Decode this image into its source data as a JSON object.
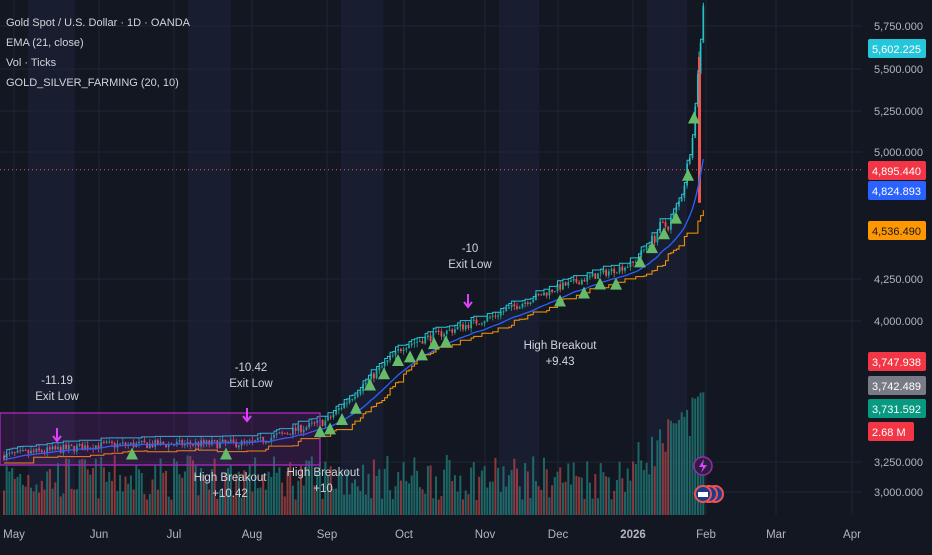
{
  "legend": {
    "title": "Gold Spot / U.S. Dollar · 1D · OANDA",
    "ema": "EMA (21, close)",
    "vol": "Vol · Ticks",
    "indicator": "GOLD_SILVER_FARMING (20, 10)"
  },
  "colors": {
    "background": "#131722",
    "shade": "#1a2034",
    "grid": "#1e2433",
    "axis_text": "#b2b5be",
    "up": "#26a69a",
    "down": "#ef5350",
    "ema": "#2962ff",
    "upper_band": "#26c6da",
    "lower_band": "#ff9800",
    "signal": "#66bb6a",
    "exit": "#e040fb",
    "range_box": "#9c27b0"
  },
  "chart_data": {
    "type": "candlestick",
    "y_ticks": [
      "5,750.000",
      "5,500.000",
      "5,250.000",
      "5,000.000",
      "4,250.000",
      "4,000.000",
      "3,250.000",
      "3,000.000"
    ],
    "x_ticks": [
      "May",
      "Jun",
      "Jul",
      "Aug",
      "Sep",
      "Oct",
      "Nov",
      "Dec",
      "2026",
      "Feb",
      "Mar",
      "Apr"
    ],
    "price_path": [
      [
        "May",
        3290
      ],
      [
        "Jun",
        3340
      ],
      [
        "Jul",
        3345
      ],
      [
        "Aug",
        3350
      ],
      [
        "Sep",
        3470
      ],
      [
        "Oct",
        3870
      ],
      [
        "Nov",
        4010
      ],
      [
        "Dec",
        4200
      ],
      [
        "2026",
        4340
      ],
      [
        "Feb",
        4895
      ]
    ],
    "price_labels": [
      {
        "text": "5,602.225",
        "role": "high",
        "color": "#26c6da"
      },
      {
        "text": "4,895.440",
        "role": "last",
        "color": "#f23645"
      },
      {
        "text": "4,824.893",
        "role": "ema",
        "color": "#2962ff"
      },
      {
        "text": "4,536.490",
        "role": "lower-band",
        "color": "#ff9800"
      },
      {
        "text": "3,747.938",
        "role": "label",
        "color": "#f23645"
      },
      {
        "text": "3,742.489",
        "role": "label",
        "color": "#787b86"
      },
      {
        "text": "3,731.592",
        "role": "label",
        "color": "#089981"
      },
      {
        "text": "2.68 M",
        "role": "volume",
        "color": "#f23645"
      }
    ],
    "annotations": [
      {
        "lines": [
          "-11.19",
          "Exit Low"
        ],
        "kind": "exit"
      },
      {
        "lines": [
          "-10.42",
          "Exit Low"
        ],
        "kind": "exit"
      },
      {
        "lines": [
          "-10",
          "Exit Low"
        ],
        "kind": "exit"
      },
      {
        "lines": [
          "High Breakout",
          "+10.42"
        ],
        "kind": "entry"
      },
      {
        "lines": [
          "High Breakout",
          "+10"
        ],
        "kind": "entry"
      },
      {
        "lines": [
          "High Breakout",
          "+9.43"
        ],
        "kind": "entry"
      }
    ]
  }
}
